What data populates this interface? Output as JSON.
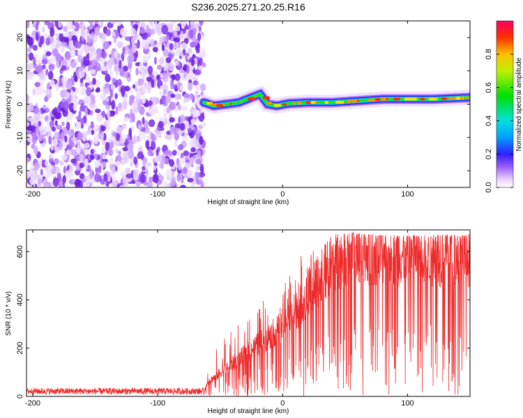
{
  "title": "S236.2025.271.20.25.R16",
  "chart_data": [
    {
      "type": "heatmap",
      "name": "spectrogram",
      "xlabel": "Height of straight line (km)",
      "ylabel": "Frequency (Hz)",
      "xlim": [
        -205,
        150
      ],
      "ylim": [
        -25,
        25
      ],
      "xticks": [
        -200,
        -100,
        0,
        100
      ],
      "yticks": [
        -20,
        -10,
        0,
        10,
        20
      ],
      "colorbar": {
        "label": "Normalized spectral amplitude",
        "range": [
          0,
          1
        ],
        "ticks": [
          0.0,
          0.2,
          0.4,
          0.6,
          0.8
        ],
        "tick_labels": [
          "0.0",
          "0.2",
          "0.4",
          "0.6",
          "0.8"
        ]
      },
      "noise_region_x": [
        -205,
        -63
      ],
      "ridge": {
        "x": [
          -63,
          -55,
          -45,
          -35,
          -25,
          -18,
          -12,
          -5,
          5,
          20,
          40,
          60,
          80,
          100,
          120,
          150
        ],
        "freq_hz": [
          0.5,
          -0.5,
          0,
          0.5,
          2,
          3,
          0,
          -0.5,
          0.2,
          0.5,
          0.5,
          1,
          1.5,
          1.5,
          1.5,
          2
        ]
      }
    },
    {
      "type": "line",
      "name": "snr",
      "xlabel": "Height of straight line (km)",
      "ylabel": "SNR (10 * v/v)",
      "xlim": [
        -205,
        150
      ],
      "ylim": [
        0,
        690
      ],
      "xticks": [
        -200,
        -100,
        0,
        100
      ],
      "yticks": [
        0,
        200,
        400,
        600
      ],
      "color": "#ee2a2a",
      "envelope": {
        "x": [
          -205,
          -63,
          -60,
          -50,
          -40,
          -30,
          -20,
          -10,
          0,
          10,
          20,
          30,
          40,
          50,
          60,
          80,
          100,
          120,
          150
        ],
        "mean": [
          18,
          18,
          60,
          100,
          140,
          180,
          220,
          260,
          300,
          360,
          430,
          500,
          570,
          600,
          610,
          610,
          605,
          600,
          600
        ],
        "peak": [
          35,
          35,
          140,
          230,
          290,
          320,
          380,
          420,
          470,
          560,
          620,
          650,
          670,
          680,
          680,
          670,
          670,
          670,
          670
        ]
      }
    }
  ]
}
